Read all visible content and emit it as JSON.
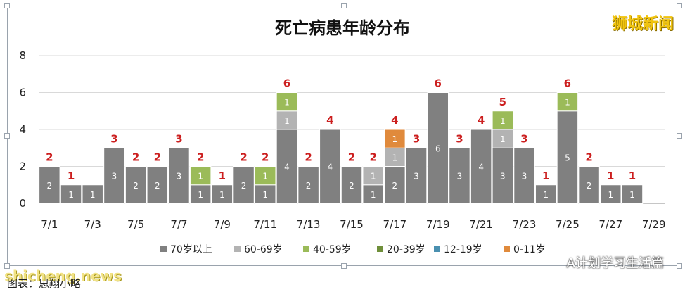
{
  "title": "死亡病患年龄分布",
  "brand": "狮城新闻",
  "watermark": "shicheng.news",
  "caption": "图表：思翔小略",
  "account": "A计划学习生活篇",
  "colors": {
    "s70": "#808080",
    "s60": "#b3b3b3",
    "s40": "#9bbb59",
    "s20": "#6f8f3a",
    "s12": "#4a90b0",
    "s0": "#e08a3c",
    "total": "#cc1f1f",
    "grid": "#d9d9d9"
  },
  "chart_data": {
    "type": "bar",
    "stacked": true,
    "title": "死亡病患年龄分布",
    "categories": [
      "7/1",
      "7/2",
      "7/3",
      "7/4",
      "7/5",
      "7/6",
      "7/7",
      "7/8",
      "7/9",
      "7/10",
      "7/11",
      "7/12",
      "7/13",
      "7/14",
      "7/15",
      "7/16",
      "7/17",
      "7/18",
      "7/19",
      "7/20",
      "7/21",
      "7/22",
      "7/23",
      "7/24",
      "7/25",
      "7/26",
      "7/27",
      "7/28",
      "7/29"
    ],
    "tick_labels": [
      "7/1",
      "7/3",
      "7/5",
      "7/7",
      "7/9",
      "7/11",
      "7/13",
      "7/15",
      "7/17",
      "7/19",
      "7/21",
      "7/23",
      "7/25",
      "7/27",
      "7/29"
    ],
    "ylim": [
      0,
      8
    ],
    "yticks": [
      0,
      2,
      4,
      6,
      8
    ],
    "grid": true,
    "legend_position": "bottom",
    "series": [
      {
        "name": "70岁以上",
        "color_key": "s70",
        "values": [
          2,
          1,
          1,
          3,
          2,
          2,
          3,
          1,
          1,
          2,
          1,
          4,
          2,
          4,
          2,
          1,
          2,
          3,
          6,
          3,
          4,
          3,
          3,
          1,
          5,
          2,
          1,
          1,
          0
        ]
      },
      {
        "name": "60-69岁",
        "color_key": "s60",
        "values": [
          0,
          0,
          0,
          0,
          0,
          0,
          0,
          0,
          0,
          0,
          0,
          1,
          0,
          0,
          0,
          1,
          1,
          0,
          0,
          0,
          0,
          1,
          0,
          0,
          0,
          0,
          0,
          0,
          0
        ]
      },
      {
        "name": "40-59岁",
        "color_key": "s40",
        "values": [
          0,
          0,
          0,
          0,
          0,
          0,
          0,
          1,
          0,
          0,
          1,
          1,
          0,
          0,
          0,
          0,
          0,
          0,
          0,
          0,
          0,
          1,
          0,
          0,
          1,
          0,
          0,
          0,
          0
        ]
      },
      {
        "name": "20-39岁",
        "color_key": "s20",
        "values": [
          0,
          0,
          0,
          0,
          0,
          0,
          0,
          0,
          0,
          0,
          0,
          0,
          0,
          0,
          0,
          0,
          0,
          0,
          0,
          0,
          0,
          0,
          0,
          0,
          0,
          0,
          0,
          0,
          0
        ]
      },
      {
        "name": "12-19岁",
        "color_key": "s12",
        "values": [
          0,
          0,
          0,
          0,
          0,
          0,
          0,
          0,
          0,
          0,
          0,
          0,
          0,
          0,
          0,
          0,
          0,
          0,
          0,
          0,
          0,
          0,
          0,
          0,
          0,
          0,
          0,
          0,
          0
        ]
      },
      {
        "name": "0-11岁",
        "color_key": "s0",
        "values": [
          0,
          0,
          0,
          0,
          0,
          0,
          0,
          0,
          0,
          0,
          0,
          0,
          0,
          0,
          0,
          0,
          1,
          0,
          0,
          0,
          0,
          0,
          0,
          0,
          0,
          0,
          0,
          0,
          0
        ]
      }
    ],
    "totals": [
      2,
      1,
      null,
      3,
      2,
      2,
      3,
      2,
      1,
      2,
      2,
      6,
      2,
      4,
      2,
      2,
      4,
      3,
      6,
      3,
      4,
      5,
      3,
      1,
      6,
      2,
      1,
      1,
      null
    ]
  }
}
